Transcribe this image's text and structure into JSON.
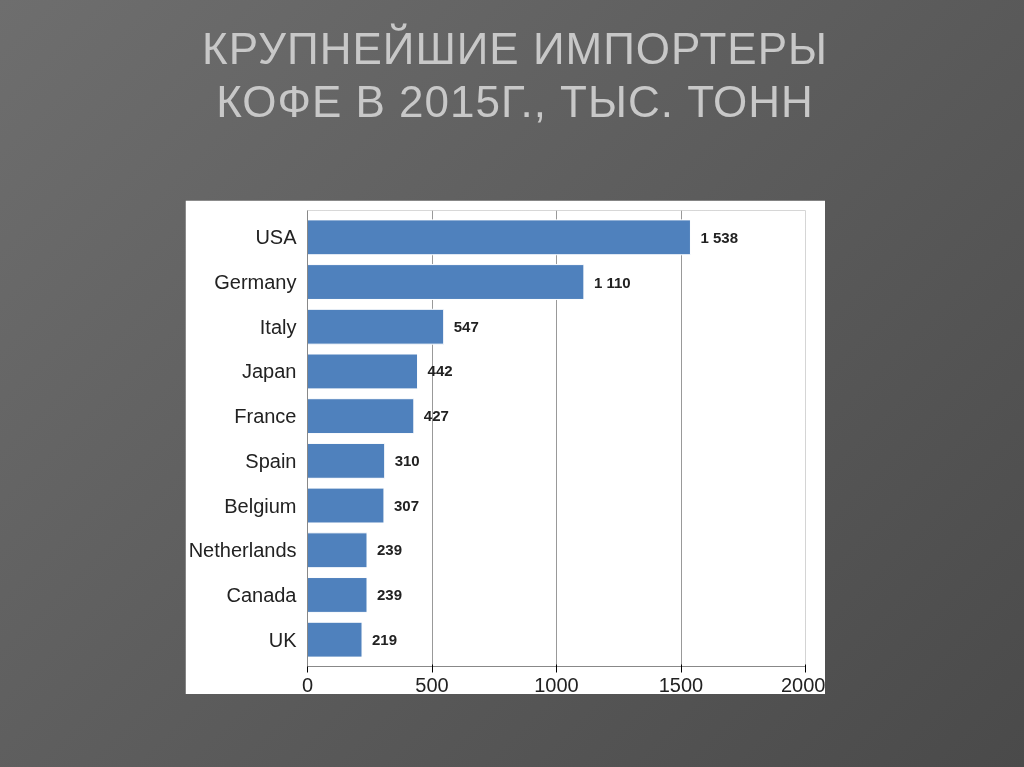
{
  "chart_data": {
    "type": "bar",
    "orientation": "horizontal",
    "title": "КРУПНЕЙШИЕ ИМПОРТЕРЫ КОФЕ В 2015Г., ТЫС. ТОНН",
    "categories": [
      "USA",
      "Germany",
      "Italy",
      "Japan",
      "France",
      "Spain",
      "Belgium",
      "Netherlands",
      "Canada",
      "UK"
    ],
    "values": [
      1538,
      1110,
      547,
      442,
      427,
      310,
      307,
      239,
      239,
      219
    ],
    "value_labels": [
      "1 538",
      "1 110",
      "547",
      "442",
      "427",
      "310",
      "307",
      "239",
      "239",
      "219"
    ],
    "color": "#4f81bd",
    "xlim": [
      0,
      2000
    ],
    "xticks": [
      0,
      500,
      1000,
      1500,
      2000
    ],
    "grid": "x"
  }
}
